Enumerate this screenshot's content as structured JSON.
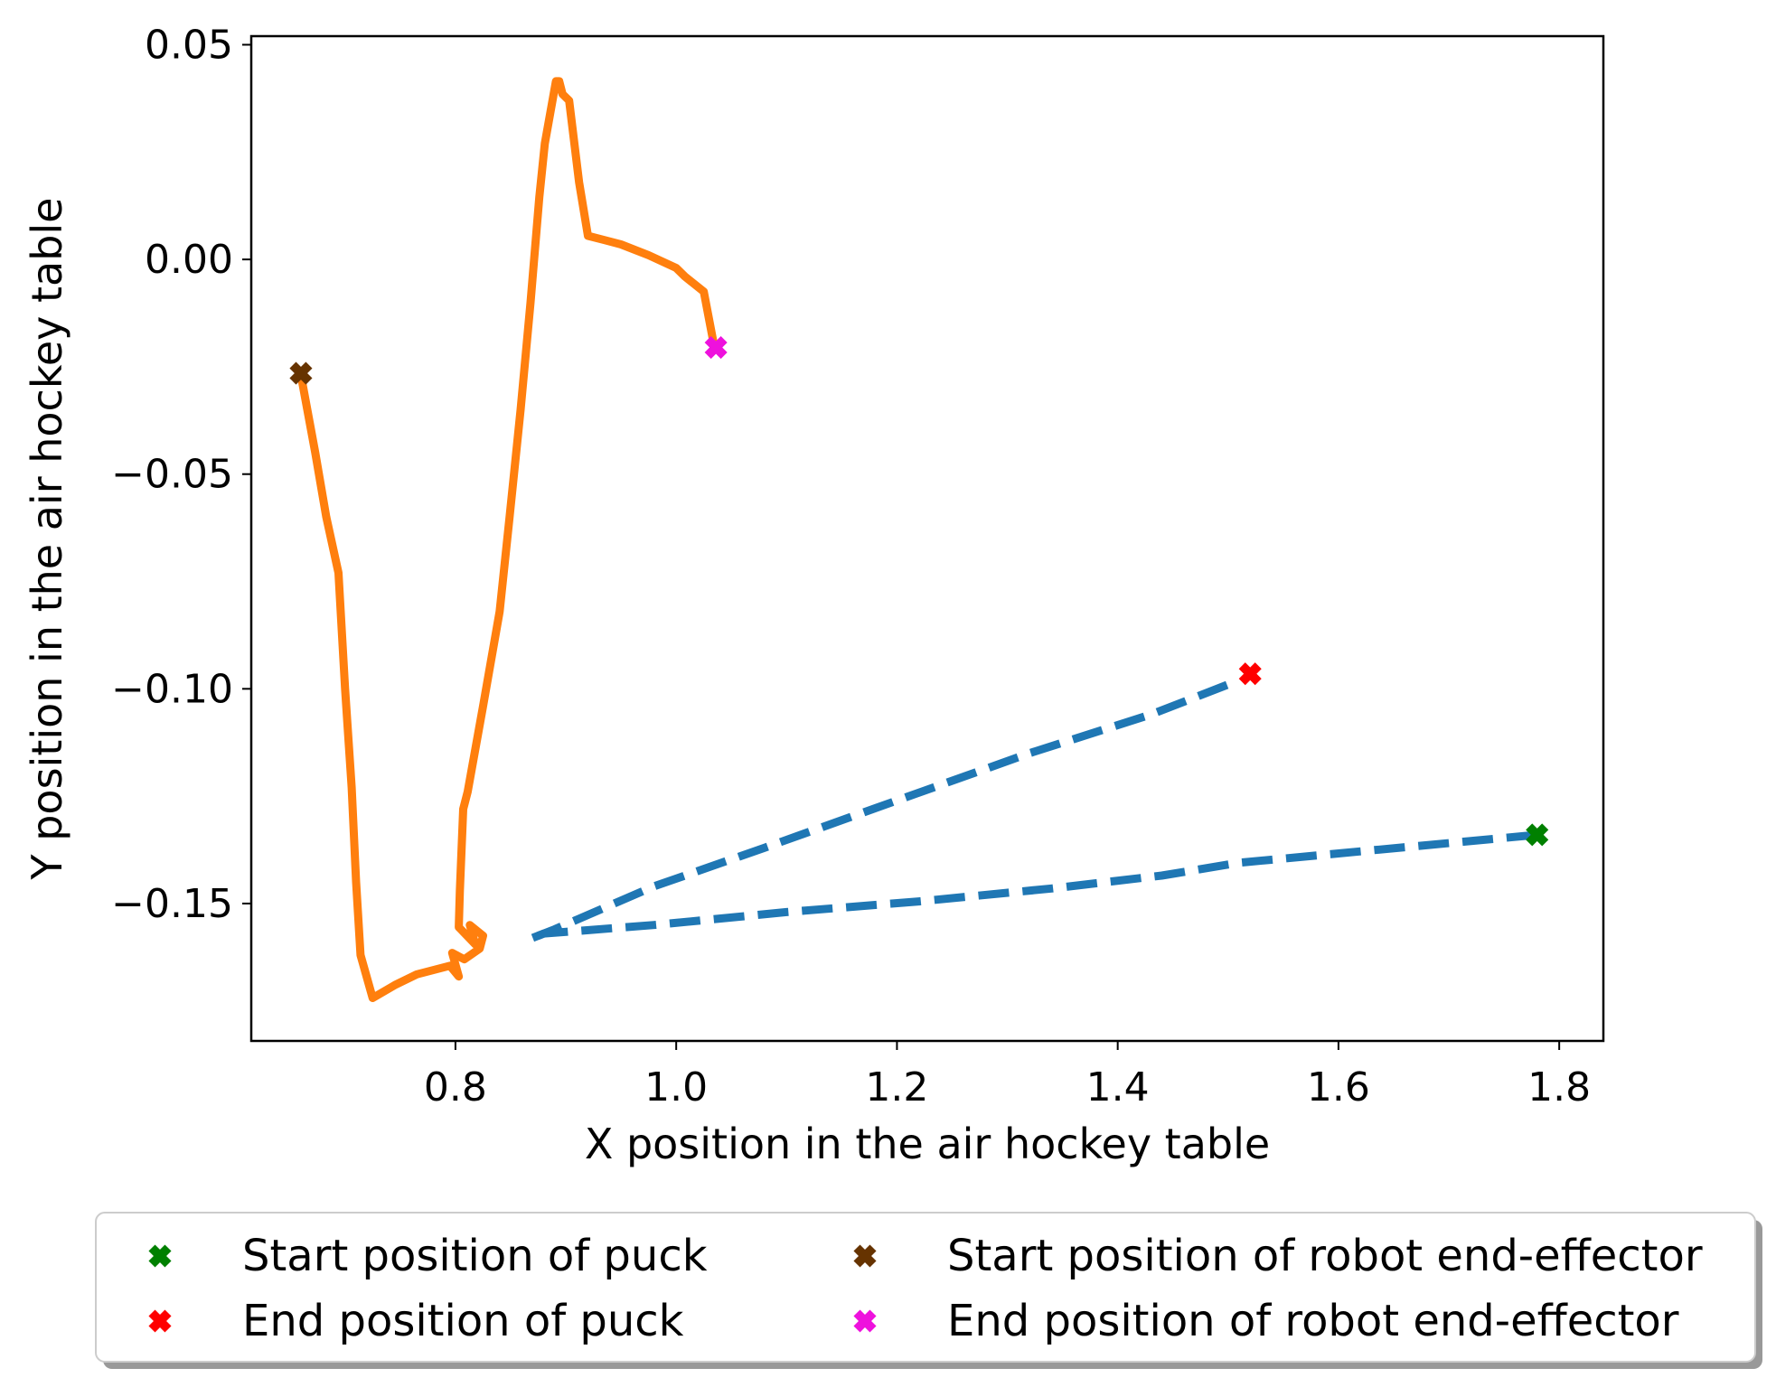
{
  "chart_data": {
    "type": "line",
    "title": "",
    "xlabel": "X position in the air hockey table",
    "ylabel": "Y position in the air hockey table",
    "xlim": [
      0.615,
      1.84
    ],
    "ylim": [
      -0.182,
      0.052
    ],
    "xticks": [
      0.8,
      1.0,
      1.2,
      1.4,
      1.6,
      1.8
    ],
    "xtick_labels": [
      "0.8",
      "1.0",
      "1.2",
      "1.4",
      "1.6",
      "1.8"
    ],
    "yticks": [
      0.05,
      0.0,
      -0.05,
      -0.1,
      -0.15
    ],
    "ytick_labels": [
      "0.05",
      "0.00",
      "−0.05",
      "−0.10",
      "−0.15"
    ],
    "grid": false,
    "legend_position": "bottom, outside plot, 2 columns",
    "series": [
      {
        "style": "dashed",
        "color": "#1f77b4",
        "x": [
          1.78,
          1.51,
          1.44,
          1.34,
          1.22,
          1.1,
          0.98,
          0.88,
          0.87
        ],
        "y": [
          -0.134,
          -0.1405,
          -0.1435,
          -0.1465,
          -0.1495,
          -0.152,
          -0.155,
          -0.157,
          -0.158
        ]
      },
      {
        "style": "dashed",
        "color": "#1f77b4",
        "x": [
          0.87,
          0.89,
          0.98,
          1.08,
          1.2,
          1.32,
          1.43,
          1.51
        ],
        "y": [
          -0.158,
          -0.156,
          -0.146,
          -0.137,
          -0.126,
          -0.115,
          -0.106,
          -0.098
        ]
      },
      {
        "style": "solid",
        "color": "#ff7f0e",
        "x": [
          0.66,
          0.673,
          0.683,
          0.694,
          0.7,
          0.706,
          0.71,
          0.714,
          0.725,
          0.745,
          0.765,
          0.795,
          0.803,
          0.797,
          0.808,
          0.822,
          0.825,
          0.813,
          0.818,
          0.803,
          0.804,
          0.807,
          0.811,
          0.825,
          0.84,
          0.849,
          0.859,
          0.868,
          0.876,
          0.881,
          0.891,
          0.894,
          0.897,
          0.903,
          0.912,
          0.92,
          0.935,
          0.95,
          0.975,
          1.0,
          1.008,
          1.025,
          1.035
        ],
        "y": [
          -0.027,
          -0.045,
          -0.06,
          -0.073,
          -0.1,
          -0.123,
          -0.145,
          -0.162,
          -0.172,
          -0.169,
          -0.1665,
          -0.1645,
          -0.167,
          -0.1615,
          -0.163,
          -0.1605,
          -0.1575,
          -0.155,
          -0.1595,
          -0.1555,
          -0.147,
          -0.128,
          -0.124,
          -0.104,
          -0.082,
          -0.06,
          -0.035,
          -0.01,
          0.0145,
          0.027,
          0.0415,
          0.0415,
          0.0385,
          0.037,
          0.018,
          0.0055,
          0.0045,
          0.0035,
          0.001,
          -0.002,
          -0.004,
          -0.0075,
          -0.021
        ]
      }
    ],
    "markers": [
      {
        "label": "Start position of puck",
        "x": 1.78,
        "y": -0.134,
        "color": "#008000",
        "marker": "X"
      },
      {
        "label": "End position of puck",
        "x": 1.52,
        "y": -0.0965,
        "color": "#ff0000",
        "marker": "X"
      },
      {
        "label": "Start position of robot end-effector",
        "x": 0.66,
        "y": -0.0265,
        "color": "#663300",
        "marker": "X"
      },
      {
        "label": "End position of robot end-effector",
        "x": 1.036,
        "y": -0.0205,
        "color": "#ee11dd",
        "marker": "X"
      }
    ]
  }
}
